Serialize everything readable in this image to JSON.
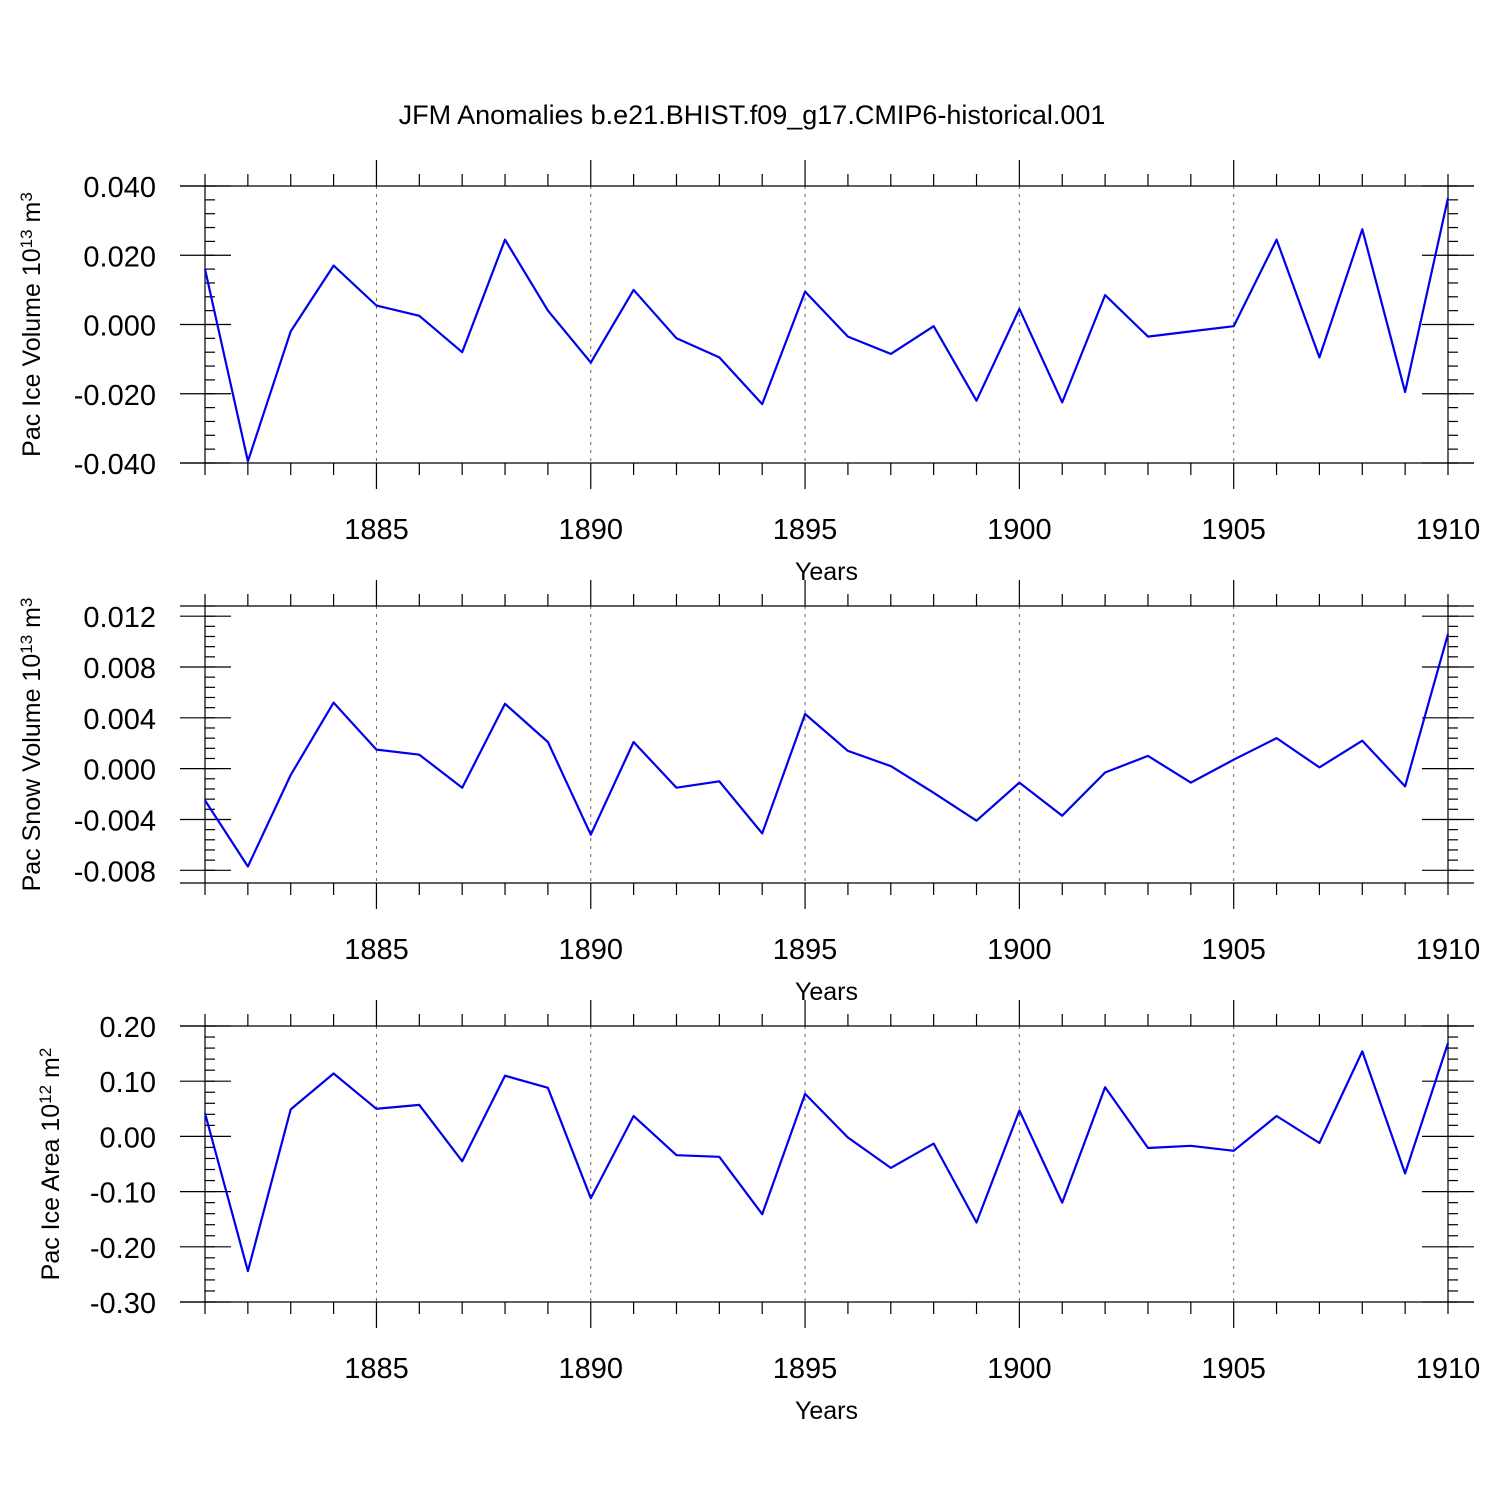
{
  "title": "JFM Anomalies b.e21.BHIST.f09_g17.CMIP6-historical.001",
  "line_color": "#0000ee",
  "chart_data": [
    {
      "type": "line",
      "ylabel_main": "Pac Ice Volume 10",
      "ylabel_exp": "13",
      "ylabel_unit": " m",
      "ylabel_unit_exp": "3",
      "xlabel": "Years",
      "xlim": [
        1881,
        1910
      ],
      "ylim": [
        -0.04,
        0.04
      ],
      "yticks": [
        -0.04,
        -0.02,
        0.0,
        0.02,
        0.04
      ],
      "ytick_labels": [
        "-0.040",
        "-0.020",
        "0.000",
        "0.020",
        "0.040"
      ],
      "yminor_step": 0.004,
      "xticks": [
        1885,
        1890,
        1895,
        1900,
        1905,
        1910
      ],
      "xtick_labels": [
        "1885",
        "1890",
        "1895",
        "1900",
        "1905",
        "1910"
      ],
      "x": [
        1881,
        1882,
        1883,
        1884,
        1885,
        1886,
        1887,
        1888,
        1889,
        1890,
        1891,
        1892,
        1893,
        1894,
        1895,
        1896,
        1897,
        1898,
        1899,
        1900,
        1901,
        1902,
        1903,
        1904,
        1905,
        1906,
        1907,
        1908,
        1909,
        1910
      ],
      "series": [
        {
          "name": "Pac Ice Volume",
          "values": [
            0.016,
            -0.0395,
            -0.002,
            0.017,
            0.0055,
            0.0025,
            -0.008,
            0.0245,
            0.004,
            -0.011,
            0.01,
            -0.004,
            -0.0095,
            -0.023,
            0.0095,
            -0.0035,
            -0.0085,
            -0.0005,
            -0.022,
            0.0045,
            -0.0225,
            0.0085,
            -0.0035,
            -0.002,
            -0.0005,
            0.0245,
            -0.0095,
            0.0275,
            -0.0195,
            0.0365
          ]
        }
      ]
    },
    {
      "type": "line",
      "ylabel_main": "Pac Snow Volume 10",
      "ylabel_exp": "13",
      "ylabel_unit": " m",
      "ylabel_unit_exp": "3",
      "xlabel": "Years",
      "xlim": [
        1881,
        1910
      ],
      "ylim": [
        -0.009,
        0.0128
      ],
      "yticks": [
        -0.008,
        -0.004,
        0.0,
        0.004,
        0.008,
        0.012
      ],
      "ytick_labels": [
        "-0.008",
        "-0.004",
        "0.000",
        "0.004",
        "0.008",
        "0.012"
      ],
      "yminor_step": 0.0008,
      "xticks": [
        1885,
        1890,
        1895,
        1900,
        1905,
        1910
      ],
      "xtick_labels": [
        "1885",
        "1890",
        "1895",
        "1900",
        "1905",
        "1910"
      ],
      "x": [
        1881,
        1882,
        1883,
        1884,
        1885,
        1886,
        1887,
        1888,
        1889,
        1890,
        1891,
        1892,
        1893,
        1894,
        1895,
        1896,
        1897,
        1898,
        1899,
        1900,
        1901,
        1902,
        1903,
        1904,
        1905,
        1906,
        1907,
        1908,
        1909,
        1910
      ],
      "series": [
        {
          "name": "Pac Snow Volume",
          "values": [
            -0.0025,
            -0.0077,
            -0.0005,
            0.0052,
            0.0015,
            0.0011,
            -0.0015,
            0.0051,
            0.0021,
            -0.0052,
            0.0021,
            -0.0015,
            -0.001,
            -0.0051,
            0.0043,
            0.0014,
            0.0002,
            -0.0019,
            -0.0041,
            -0.0011,
            -0.0037,
            -0.0003,
            0.001,
            -0.0011,
            0.0007,
            0.0024,
            0.0001,
            0.0022,
            -0.0014,
            0.0106
          ]
        }
      ]
    },
    {
      "type": "line",
      "ylabel_main": "Pac Ice Area 10",
      "ylabel_exp": "12",
      "ylabel_unit": " m",
      "ylabel_unit_exp": "2",
      "xlabel": "Years",
      "xlim": [
        1881,
        1910
      ],
      "ylim": [
        -0.3,
        0.2
      ],
      "yticks": [
        -0.3,
        -0.2,
        -0.1,
        0.0,
        0.1,
        0.2
      ],
      "ytick_labels": [
        "-0.30",
        "-0.20",
        "-0.10",
        "0.00",
        "0.10",
        "0.20"
      ],
      "yminor_step": 0.02,
      "xticks": [
        1885,
        1890,
        1895,
        1900,
        1905,
        1910
      ],
      "xtick_labels": [
        "1885",
        "1890",
        "1895",
        "1900",
        "1905",
        "1910"
      ],
      "x": [
        1881,
        1882,
        1883,
        1884,
        1885,
        1886,
        1887,
        1888,
        1889,
        1890,
        1891,
        1892,
        1893,
        1894,
        1895,
        1896,
        1897,
        1898,
        1899,
        1900,
        1901,
        1902,
        1903,
        1904,
        1905,
        1906,
        1907,
        1908,
        1909,
        1910
      ],
      "series": [
        {
          "name": "Pac Ice Area",
          "values": [
            0.042,
            -0.244,
            0.049,
            0.114,
            0.05,
            0.057,
            -0.045,
            0.11,
            0.088,
            -0.112,
            0.037,
            -0.034,
            -0.037,
            -0.141,
            0.077,
            -0.002,
            -0.057,
            -0.013,
            -0.156,
            0.047,
            -0.12,
            0.089,
            -0.021,
            -0.017,
            -0.026,
            0.037,
            -0.012,
            0.154,
            -0.067,
            0.169
          ]
        }
      ]
    }
  ]
}
